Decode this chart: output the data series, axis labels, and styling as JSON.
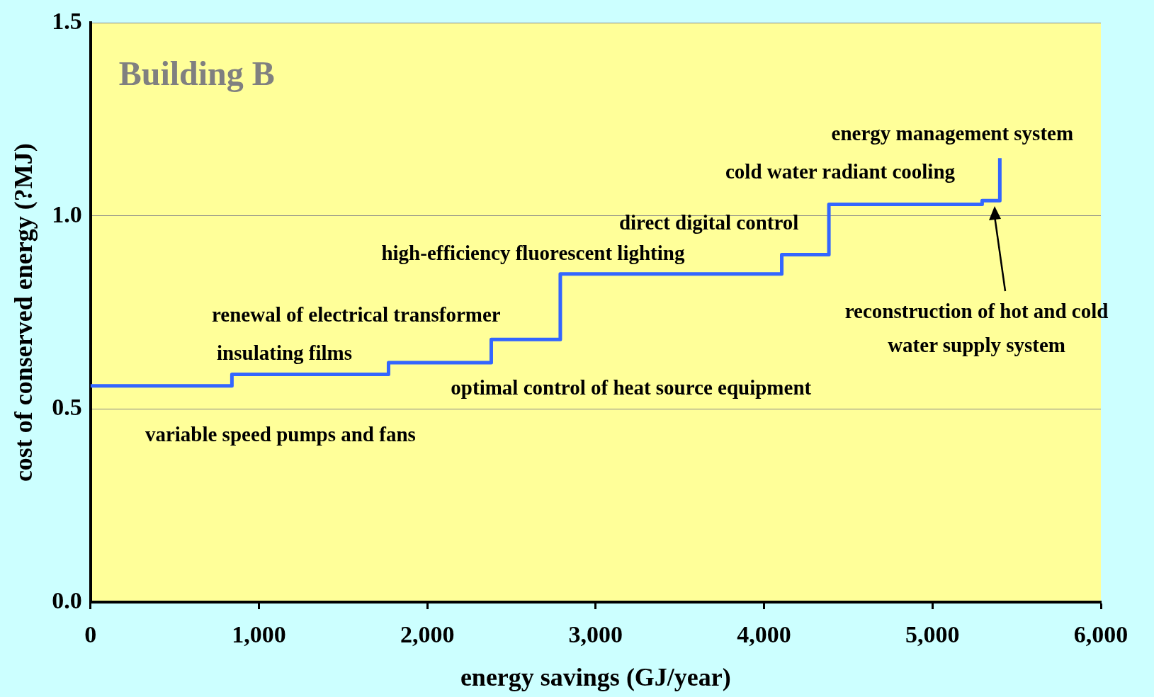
{
  "chart_data": {
    "type": "step",
    "title": "Building B",
    "xlabel": "energy savings (GJ/year)",
    "ylabel": "cost of conserved energy (?MJ)",
    "x": [
      0,
      840,
      1770,
      2380,
      2790,
      4105,
      4385,
      5295,
      5400
    ],
    "series": [
      {
        "color": "#3366ff",
        "values": [
          0.56,
          0.59,
          0.62,
          0.68,
          0.85,
          0.9,
          1.03,
          1.04,
          1.15
        ]
      }
    ],
    "xlim": [
      0,
      6000
    ],
    "xticks": [
      0,
      {
        "value": 1000,
        "label": "1,000"
      },
      {
        "value": 2000,
        "label": "2,000"
      },
      {
        "value": 3000,
        "label": "3,000"
      },
      {
        "value": 4000,
        "label": "4,000"
      },
      {
        "value": 5000,
        "label": "5,000"
      },
      {
        "value": 6000,
        "label": "6,000"
      }
    ],
    "ylim": [
      0,
      1.5
    ],
    "yticks": [
      {
        "value": 0,
        "label": "0.0"
      },
      0.5,
      {
        "value": 1,
        "label": "1.0"
      },
      1.5
    ],
    "grid": "y",
    "legend": false,
    "marker": "none",
    "line_style": "solid",
    "annotations": [
      "variable speed pumps and fans",
      "insulating films",
      "renewal of electrical transformer",
      "optimal control of heat source equipment",
      "high-efficiency fluorescent lighting",
      "direct digital control",
      "cold water radiant cooling",
      "energy management system",
      "reconstruction of hot and cold\nwater supply system"
    ]
  }
}
